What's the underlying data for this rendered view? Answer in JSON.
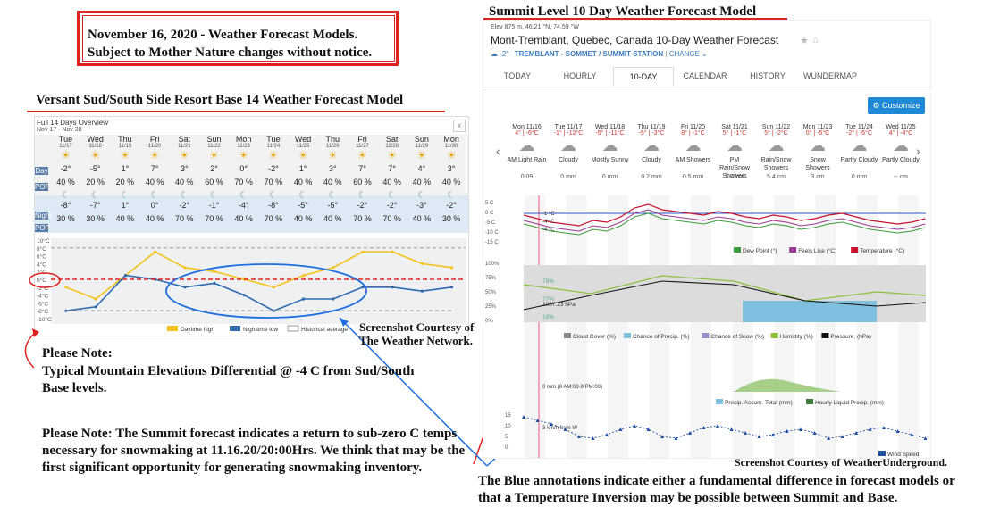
{
  "header": {
    "line1": "November 16, 2020 - Weather Forecast Models.",
    "line2": "Subject to Mother Nature changes without notice."
  },
  "left": {
    "heading": "Versant Sud/South Side Resort Base 14 Weather Forecast Model",
    "overview_title": "Full 14 Days Overview",
    "overview_range": "Nov 17 - Nov 30",
    "close": "x",
    "row_day_label": "Day",
    "row_pop_label": "POP",
    "row_night_label": "Night",
    "days": [
      {
        "dow": "Tue",
        "date": "11/17",
        "day_t": "-2°",
        "day_pop": "40",
        "night_t": "-8°",
        "night_pop": "30"
      },
      {
        "dow": "Wed",
        "date": "11/18",
        "day_t": "-5°",
        "day_pop": "20",
        "night_t": "-7°",
        "night_pop": "30"
      },
      {
        "dow": "Thu",
        "date": "11/19",
        "day_t": "1°",
        "day_pop": "20",
        "night_t": "1°",
        "night_pop": "40"
      },
      {
        "dow": "Fri",
        "date": "11/20",
        "day_t": "7°",
        "day_pop": "40",
        "night_t": "0°",
        "night_pop": "40"
      },
      {
        "dow": "Sat",
        "date": "11/21",
        "day_t": "3°",
        "day_pop": "40",
        "night_t": "-2°",
        "night_pop": "70"
      },
      {
        "dow": "Sun",
        "date": "11/22",
        "day_t": "2°",
        "day_pop": "60",
        "night_t": "-1°",
        "night_pop": "70"
      },
      {
        "dow": "Mon",
        "date": "11/23",
        "day_t": "0°",
        "day_pop": "70",
        "night_t": "-4°",
        "night_pop": "40"
      },
      {
        "dow": "Tue",
        "date": "11/24",
        "day_t": "-2°",
        "day_pop": "70",
        "night_t": "-8°",
        "night_pop": "70"
      },
      {
        "dow": "Wed",
        "date": "11/25",
        "day_t": "1°",
        "day_pop": "40",
        "night_t": "-5°",
        "night_pop": "40"
      },
      {
        "dow": "Thu",
        "date": "11/26",
        "day_t": "3°",
        "day_pop": "40",
        "night_t": "-5°",
        "night_pop": "40"
      },
      {
        "dow": "Fri",
        "date": "11/27",
        "day_t": "7°",
        "day_pop": "60",
        "night_t": "-2°",
        "night_pop": "70"
      },
      {
        "dow": "Sat",
        "date": "11/28",
        "day_t": "7°",
        "day_pop": "40",
        "night_t": "-2°",
        "night_pop": "70"
      },
      {
        "dow": "Sun",
        "date": "11/29",
        "day_t": "4°",
        "day_pop": "40",
        "night_t": "-3°",
        "night_pop": "40"
      },
      {
        "dow": "Mon",
        "date": "11/30",
        "day_t": "3°",
        "day_pop": "40",
        "night_t": "-2°",
        "night_pop": "30"
      }
    ],
    "pct": "%",
    "yaxis": [
      "10°C",
      "8°C",
      "6°C",
      "4°C",
      "2°C",
      "0°C",
      "-2°C",
      "-4°C",
      "-6°C",
      "-8°C",
      "-10°C"
    ],
    "legend": {
      "high": "Daytime high",
      "low": "Nighttime low",
      "hist": "Historical average"
    },
    "credit_line1": "Screenshot Courtesy of",
    "credit_line2": "The Weather Network."
  },
  "chart_data": [
    {
      "type": "line",
      "title": "",
      "categories": [
        "11/17",
        "11/18",
        "11/19",
        "11/20",
        "11/21",
        "11/22",
        "11/23",
        "11/24",
        "11/25",
        "11/26",
        "11/27",
        "11/28",
        "11/29",
        "11/30"
      ],
      "series": [
        {
          "name": "Daytime high",
          "values": [
            -2,
            -5,
            1,
            7,
            3,
            2,
            0,
            -2,
            1,
            3,
            7,
            7,
            4,
            3
          ]
        },
        {
          "name": "Nighttime low",
          "values": [
            -8,
            -7,
            1,
            0,
            -2,
            -1,
            -4,
            -8,
            -5,
            -5,
            -2,
            -2,
            -3,
            -2
          ]
        },
        {
          "name": "Historical average",
          "values": [
            -8,
            -8,
            -8,
            -8,
            -8,
            -8,
            -8,
            -8,
            -8,
            -8,
            -8,
            -8,
            -8,
            -8
          ]
        }
      ],
      "ylim": [
        -10,
        10
      ]
    }
  ],
  "notes": {
    "note1_heading": "Please Note:",
    "note1_body": "Typical Mountain Elevations Differential @ -4 C from Sud/South Base levels.",
    "note2": "Please Note: The Summit forecast indicates a return to sub-zero C temps necessary for snowmaking at 11.16.20/20:00Hrs. We think that may be the first significant opportunity for generating snowmaking inventory.",
    "blue_note": "The Blue annotations indicate either a fundamental difference in forecast models or that a Temperature Inversion may be possible between Summit and Base."
  },
  "right": {
    "heading": "Summit Level 10 Day Weather Forecast Model",
    "elev": "Elev 875 m, 46.21 °N, 74.59 °W",
    "location_title": "Mont-Tremblant, Quebec, Canada 10-Day Weather Forecast",
    "current_temp": "-2°",
    "station": "TREMBLANT - SOMMET / SUMMIT STATION",
    "change": "CHANGE",
    "tabs": [
      "TODAY",
      "HOURLY",
      "10-DAY",
      "CALENDAR",
      "HISTORY",
      "WUNDERMAP"
    ],
    "customize": "Customize",
    "days": [
      {
        "d": "Mon 11/16",
        "t": "4° | -6°C",
        "c": "AM Light Rain",
        "p": "0.09",
        "u": ""
      },
      {
        "d": "Tue 11/17",
        "t": "-1° | -12°C",
        "c": "Cloudy",
        "p": "0 mm",
        "u": ""
      },
      {
        "d": "Wed 11/18",
        "t": "-5° | -11°C",
        "c": "Mostly Sunny",
        "p": "0 mm",
        "u": ""
      },
      {
        "d": "Thu 11/19",
        "t": "-5° | -3°C",
        "c": "Cloudy",
        "p": "0.2 mm",
        "u": ""
      },
      {
        "d": "Fri 11/20",
        "t": "8° | -1°C",
        "c": "AM Showers",
        "p": "0.5 mm",
        "u": ""
      },
      {
        "d": "Sat 11/21",
        "t": "5° | -1°C",
        "c": "PM Rain/Snow Showers",
        "p": "5.4 cm",
        "u": ""
      },
      {
        "d": "Sun 11/22",
        "t": "5° | -2°C",
        "c": "Rain/Snow Showers",
        "p": "5.4 cm",
        "u": ""
      },
      {
        "d": "Mon 11/23",
        "t": "0° | -5°C",
        "c": "Snow Showers",
        "p": "3 cm",
        "u": ""
      },
      {
        "d": "Tue 11/24",
        "t": "-2° | -6°C",
        "c": "Partly Cloudy",
        "p": "0 mm",
        "u": ""
      },
      {
        "d": "Wed 11/25",
        "t": "4° | -4°C",
        "c": "Partly Cloudy",
        "p": "-- cm",
        "u": ""
      }
    ],
    "time_marker": "8 PM",
    "temp_axis": [
      "5 C",
      "0 C",
      "-5 C",
      "-10 C",
      "-15 C"
    ],
    "temp_points": [
      "-1 °C",
      "-4 °C",
      "-4 °C"
    ],
    "legend1": [
      "Dew Point (°)",
      "Feels Like (°C)",
      "Temperature (°C)"
    ],
    "pct_axis": [
      "100%",
      "75%",
      "50%",
      "25%",
      "0%"
    ],
    "pressure_axis": [
      "1035.00",
      "1025.00",
      "1015.00",
      "1005.00",
      "995.00"
    ],
    "humidity_vals": [
      "78%",
      "77%",
      "18%"
    ],
    "pressure_val": "1007.23 hPa",
    "legend2": [
      "Cloud Cover (%)",
      "Chance of Precip. (%)",
      "Chance of Snow (%)",
      "Humidity (%)",
      "Pressure. (hPa)"
    ],
    "precip_label": "0 mm (8 AM:00-9 PM:00)",
    "legend3": [
      "Precip. Accum. Total (mm)",
      "Hourly Liquid Precip. (mm)"
    ],
    "wind_axis": [
      "15",
      "10",
      "5",
      "0"
    ],
    "wind_label": "3 km/h from W",
    "legend4": [
      "Wind Speed"
    ],
    "credit": "Screenshot Courtesy of  WeatherUnderground."
  }
}
